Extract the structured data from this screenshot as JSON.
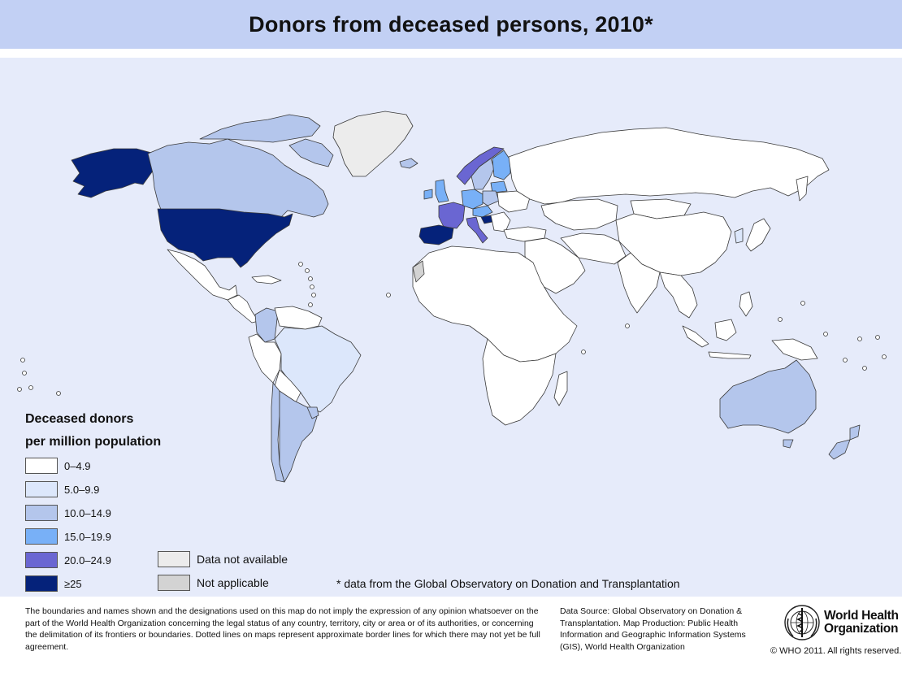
{
  "title": "Donors from deceased persons, 2010*",
  "colors": {
    "title_bar": "#c2d0f4",
    "ocean": "#e6ebfa",
    "band_0_4_9": "#ffffff",
    "band_5_9_9": "#dce7fb",
    "band_10_14_9": "#b4c6ec",
    "band_15_19_9": "#78b0f7",
    "band_20_24_9": "#6a66d2",
    "band_25_plus": "#05227a",
    "data_not_available": "#ececec",
    "not_applicable": "#d3d3d3",
    "border": "#3a3a3a"
  },
  "legend": {
    "title_line1": "Deceased donors",
    "title_line2": "per million population",
    "items": [
      {
        "label": "0–4.9",
        "color": "#ffffff"
      },
      {
        "label": "5.0–9.9",
        "color": "#dce7fb"
      },
      {
        "label": "10.0–14.9",
        "color": "#b4c6ec"
      },
      {
        "label": "15.0–19.9",
        "color": "#78b0f7"
      },
      {
        "label": "20.0–24.9",
        "color": "#6a66d2"
      },
      {
        "label": "≥25",
        "color": "#05227a"
      }
    ],
    "extra_items": [
      {
        "label": "Data not available",
        "color": "#ececec"
      },
      {
        "label": "Not applicable",
        "color": "#d3d3d3"
      }
    ]
  },
  "footnote": "* data from the Global Observatory on Donation and Transplantation",
  "disclaimer": "The boundaries and names shown and the designations used on this map do not imply the expression of any opinion whatsoever on the part of the World Health Organization concerning the legal status of any country, territory, city or area or of its authorities, or concerning the delimitation of its frontiers or boundaries.  Dotted lines on maps represent approximate border lines for which there may not yet be full agreement.",
  "source": "Data Source: Global Observatory on Donation & Transplantation. Map Production: Public Health Information and Geographic Information Systems (GIS), World Health Organization",
  "logo": {
    "line1": "World Health",
    "line2": "Organization",
    "emblem": "who-emblem-icon"
  },
  "copyright": "© WHO 2011. All rights reserved."
}
